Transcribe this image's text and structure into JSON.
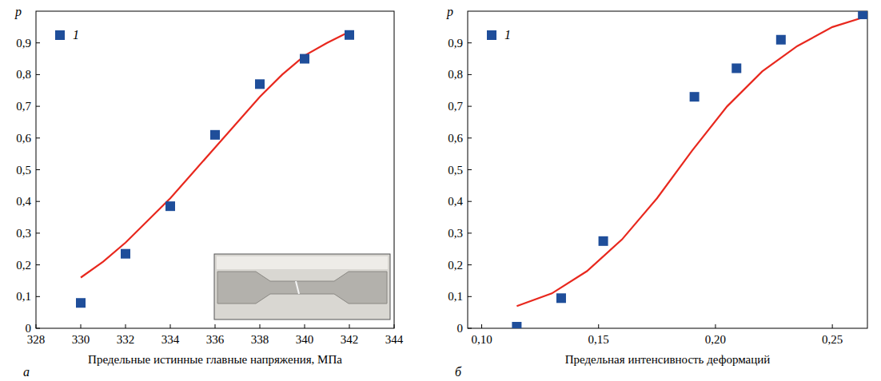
{
  "chart_data": [
    {
      "type": "scatter",
      "x_label": "Предельные истинные главные напряжения, МПа",
      "y_label": "p",
      "panel_label": "а",
      "legend": "top-left",
      "grid": false,
      "xlim": [
        328,
        344
      ],
      "xticks": [
        328,
        330,
        332,
        334,
        336,
        338,
        340,
        342,
        344
      ],
      "ylim": [
        0,
        1.0
      ],
      "yticks": [
        0,
        {
          "value": 0.1,
          "label": "0,1"
        },
        {
          "value": 0.2,
          "label": "0,2"
        },
        {
          "value": 0.3,
          "label": "0,3"
        },
        {
          "value": 0.4,
          "label": "0,4"
        },
        {
          "value": 0.5,
          "label": "0,5"
        },
        {
          "value": 0.6,
          "label": "0,6"
        },
        {
          "value": 0.7,
          "label": "0,7"
        },
        {
          "value": 0.8,
          "label": "0,8"
        },
        {
          "value": 0.9,
          "label": "0,9"
        }
      ],
      "series": [
        {
          "name": "1",
          "type": "scatter",
          "marker": "square",
          "color": "#1f4e9a",
          "x": [
            330,
            332,
            334,
            336,
            338,
            340,
            342
          ],
          "values": [
            0.08,
            0.235,
            0.385,
            0.61,
            0.77,
            0.85,
            0.925
          ]
        },
        {
          "type": "line",
          "line_style": "solid",
          "color": "#e8281e",
          "x": [
            330,
            331,
            332,
            333,
            334,
            335,
            336,
            337,
            338,
            339,
            340,
            341,
            342
          ],
          "values": [
            0.16,
            0.21,
            0.27,
            0.34,
            0.41,
            0.49,
            0.57,
            0.65,
            0.73,
            0.8,
            0.86,
            0.9,
            0.935
          ]
        }
      ]
    },
    {
      "type": "scatter",
      "x_label": "Предельная интенсивность деформаций",
      "y_label": "p",
      "panel_label": "б",
      "legend": "top-left",
      "grid": false,
      "xlim": [
        0.094,
        0.265
      ],
      "xticks": [
        {
          "value": 0.1,
          "label": "0,10"
        },
        {
          "value": 0.15,
          "label": "0,15"
        },
        {
          "value": 0.2,
          "label": "0,20"
        },
        {
          "value": 0.25,
          "label": "0,25"
        }
      ],
      "ylim": [
        0,
        1.0
      ],
      "yticks": [
        0,
        {
          "value": 0.1,
          "label": "0,1"
        },
        {
          "value": 0.2,
          "label": "0,2"
        },
        {
          "value": 0.3,
          "label": "0,3"
        },
        {
          "value": 0.4,
          "label": "0,4"
        },
        {
          "value": 0.5,
          "label": "0,5"
        },
        {
          "value": 0.6,
          "label": "0,6"
        },
        {
          "value": 0.7,
          "label": "0,7"
        },
        {
          "value": 0.8,
          "label": "0,8"
        },
        {
          "value": 0.9,
          "label": "0,9"
        }
      ],
      "series": [
        {
          "name": "1",
          "type": "scatter",
          "marker": "square",
          "color": "#1f4e9a",
          "x": [
            0.115,
            0.134,
            0.152,
            0.191,
            0.209,
            0.228,
            0.263
          ],
          "values": [
            0.005,
            0.095,
            0.275,
            0.73,
            0.82,
            0.91,
            0.99
          ]
        },
        {
          "type": "line",
          "line_style": "solid",
          "color": "#e8281e",
          "x": [
            0.115,
            0.13,
            0.145,
            0.16,
            0.175,
            0.19,
            0.205,
            0.22,
            0.235,
            0.25,
            0.263
          ],
          "values": [
            0.07,
            0.11,
            0.18,
            0.28,
            0.41,
            0.56,
            0.7,
            0.81,
            0.89,
            0.95,
            0.98
          ]
        }
      ]
    }
  ]
}
